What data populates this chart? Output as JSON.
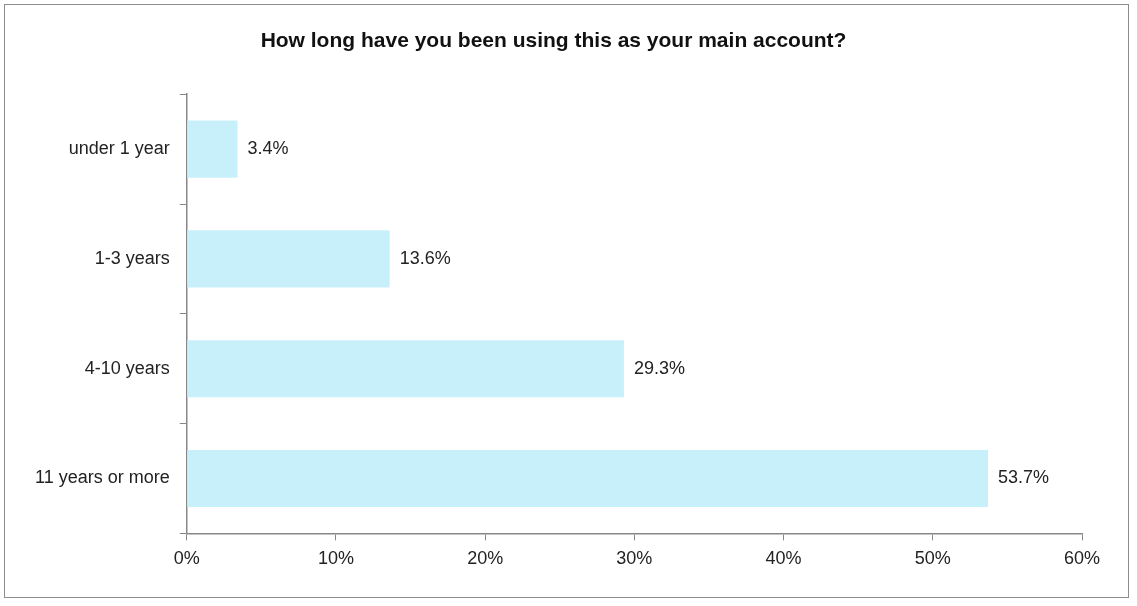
{
  "chart_data": {
    "type": "bar",
    "orientation": "horizontal",
    "title": "How long have you been using this as your main account?",
    "categories": [
      "under 1 year",
      "1-3 years",
      "4-10 years",
      "11 years or more"
    ],
    "values": [
      3.4,
      13.6,
      29.3,
      53.7
    ],
    "value_labels": [
      "3.4%",
      "13.6%",
      "29.3%",
      "53.7%"
    ],
    "color": "#c8f0fb",
    "xlim": [
      0,
      60
    ],
    "xticks": [
      {
        "value": 0,
        "label": "0%"
      },
      {
        "value": 10,
        "label": "10%"
      },
      {
        "value": 20,
        "label": "20%"
      },
      {
        "value": 30,
        "label": "30%"
      },
      {
        "value": 40,
        "label": "40%"
      },
      {
        "value": 50,
        "label": "50%"
      },
      {
        "value": 60,
        "label": "60%"
      }
    ],
    "legend": false
  }
}
